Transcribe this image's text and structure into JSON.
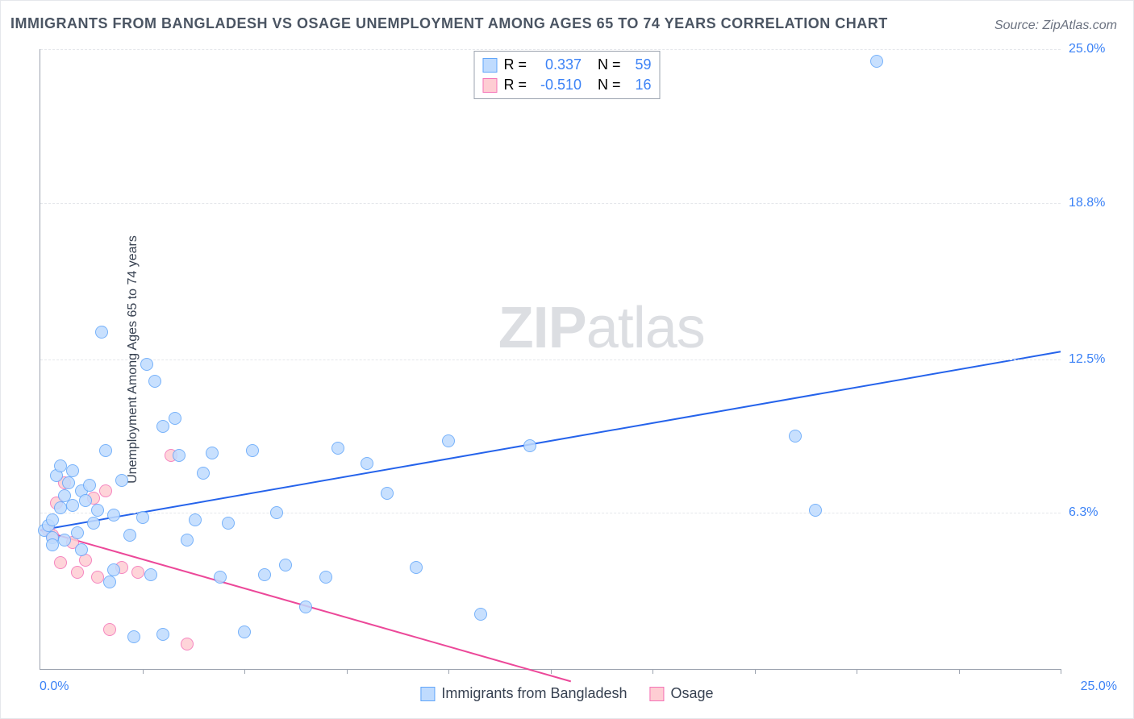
{
  "title": "IMMIGRANTS FROM BANGLADESH VS OSAGE UNEMPLOYMENT AMONG AGES 65 TO 74 YEARS CORRELATION CHART",
  "source": "Source: ZipAtlas.com",
  "watermark_bold": "ZIP",
  "watermark_rest": "atlas",
  "chart": {
    "type": "scatter-with-regression",
    "y_axis_label": "Unemployment Among Ages 65 to 74 years",
    "x_min": 0.0,
    "x_max": 25.0,
    "y_min": 0.0,
    "y_max": 25.0,
    "origin_label": "0.0%",
    "x_max_label": "25.0%",
    "y_ticks": [
      {
        "value": 6.3,
        "label": "6.3%"
      },
      {
        "value": 12.5,
        "label": "12.5%"
      },
      {
        "value": 18.8,
        "label": "18.8%"
      },
      {
        "value": 25.0,
        "label": "25.0%"
      }
    ],
    "x_tick_values": [
      2.5,
      5.0,
      7.5,
      10.0,
      12.5,
      15.0,
      17.5,
      20.0,
      22.5,
      25.0
    ],
    "grid_color": "#e5e7eb",
    "axis_color": "#9ca3af",
    "background_color": "#ffffff",
    "marker_radius": 8,
    "marker_stroke_width": 1.5,
    "line_width": 2
  },
  "series": [
    {
      "name": "Immigrants from Bangladesh",
      "fill_color": "#bfdbfe",
      "stroke_color": "#60a5fa",
      "line_color": "#2563eb",
      "R": "0.337",
      "N": "59",
      "trend": {
        "x1": 0.0,
        "y1": 5.6,
        "x2": 25.0,
        "y2": 12.8
      },
      "points": [
        [
          0.1,
          5.6
        ],
        [
          0.2,
          5.8
        ],
        [
          0.3,
          6.0
        ],
        [
          0.3,
          5.3
        ],
        [
          0.3,
          5.0
        ],
        [
          0.4,
          7.8
        ],
        [
          0.5,
          8.2
        ],
        [
          0.5,
          6.5
        ],
        [
          0.6,
          7.0
        ],
        [
          0.6,
          5.2
        ],
        [
          0.7,
          7.5
        ],
        [
          0.8,
          6.6
        ],
        [
          0.8,
          8.0
        ],
        [
          0.9,
          5.5
        ],
        [
          1.0,
          7.2
        ],
        [
          1.0,
          4.8
        ],
        [
          1.1,
          6.8
        ],
        [
          1.2,
          7.4
        ],
        [
          1.3,
          5.9
        ],
        [
          1.4,
          6.4
        ],
        [
          1.5,
          13.6
        ],
        [
          1.6,
          8.8
        ],
        [
          1.7,
          3.5
        ],
        [
          1.8,
          6.2
        ],
        [
          1.8,
          4.0
        ],
        [
          2.0,
          7.6
        ],
        [
          2.2,
          5.4
        ],
        [
          2.3,
          1.3
        ],
        [
          2.5,
          6.1
        ],
        [
          2.6,
          12.3
        ],
        [
          2.7,
          3.8
        ],
        [
          2.8,
          11.6
        ],
        [
          3.0,
          9.8
        ],
        [
          3.0,
          1.4
        ],
        [
          3.3,
          10.1
        ],
        [
          3.4,
          8.6
        ],
        [
          3.6,
          5.2
        ],
        [
          3.8,
          6.0
        ],
        [
          4.0,
          7.9
        ],
        [
          4.2,
          8.7
        ],
        [
          4.4,
          3.7
        ],
        [
          4.6,
          5.9
        ],
        [
          5.0,
          1.5
        ],
        [
          5.2,
          8.8
        ],
        [
          5.5,
          3.8
        ],
        [
          5.8,
          6.3
        ],
        [
          6.0,
          4.2
        ],
        [
          6.5,
          2.5
        ],
        [
          7.0,
          3.7
        ],
        [
          7.3,
          8.9
        ],
        [
          8.0,
          8.3
        ],
        [
          8.5,
          7.1
        ],
        [
          9.2,
          4.1
        ],
        [
          10.0,
          9.2
        ],
        [
          10.8,
          2.2
        ],
        [
          12.0,
          9.0
        ],
        [
          18.5,
          9.4
        ],
        [
          19.0,
          6.4
        ],
        [
          20.5,
          24.5
        ]
      ]
    },
    {
      "name": "Osage",
      "fill_color": "#fecdd3",
      "stroke_color": "#f472b6",
      "line_color": "#ec4899",
      "R": "-0.510",
      "N": "16",
      "trend": {
        "x1": 0.0,
        "y1": 5.6,
        "x2": 13.0,
        "y2": -0.5
      },
      "points": [
        [
          0.2,
          5.6
        ],
        [
          0.3,
          5.4
        ],
        [
          0.4,
          6.7
        ],
        [
          0.5,
          4.3
        ],
        [
          0.6,
          7.5
        ],
        [
          0.8,
          5.1
        ],
        [
          0.9,
          3.9
        ],
        [
          1.1,
          4.4
        ],
        [
          1.3,
          6.9
        ],
        [
          1.4,
          3.7
        ],
        [
          1.6,
          7.2
        ],
        [
          1.7,
          1.6
        ],
        [
          2.0,
          4.1
        ],
        [
          2.4,
          3.9
        ],
        [
          3.2,
          8.6
        ],
        [
          3.6,
          1.0
        ]
      ]
    }
  ],
  "stats_labels": {
    "R": "R  =",
    "N": "N  ="
  },
  "legend_series1": "Immigrants from Bangladesh",
  "legend_series2": "Osage"
}
